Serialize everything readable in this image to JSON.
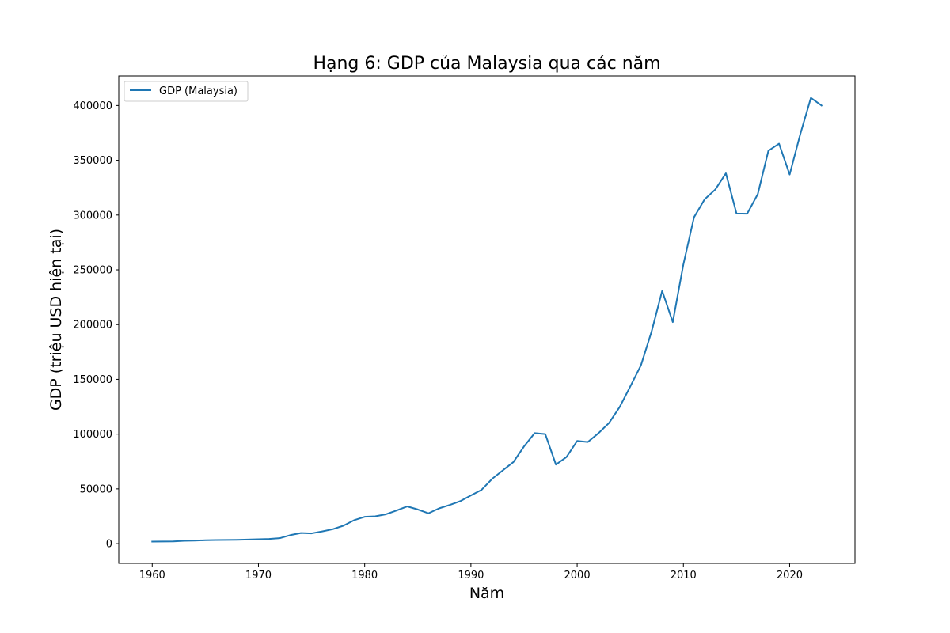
{
  "chart_data": {
    "type": "line",
    "title": "Hạng 6: GDP của Malaysia qua các năm",
    "xlabel": "Năm",
    "ylabel": "GDP (triệu USD hiện tại)",
    "xlim": [
      1956.85,
      2026.15
    ],
    "ylim": [
      -18000,
      427000
    ],
    "x_ticks": [
      1960,
      1970,
      1980,
      1990,
      2000,
      2010,
      2020
    ],
    "y_ticks": [
      0,
      50000,
      100000,
      150000,
      200000,
      250000,
      300000,
      350000,
      400000
    ],
    "legend_position": "upper left",
    "grid": false,
    "color": "#1f77b4",
    "series": [
      {
        "name": "GDP (Malaysia)",
        "x": [
          1960,
          1961,
          1962,
          1963,
          1964,
          1965,
          1966,
          1967,
          1968,
          1969,
          1970,
          1971,
          1972,
          1973,
          1974,
          1975,
          1976,
          1977,
          1978,
          1979,
          1980,
          1981,
          1982,
          1983,
          1984,
          1985,
          1986,
          1987,
          1988,
          1989,
          1990,
          1991,
          1992,
          1993,
          1994,
          1995,
          1996,
          1997,
          1998,
          1999,
          2000,
          2001,
          2002,
          2003,
          2004,
          2005,
          2006,
          2007,
          2008,
          2009,
          2010,
          2011,
          2012,
          2013,
          2014,
          2015,
          2016,
          2017,
          2018,
          2019,
          2020,
          2021,
          2022,
          2023
        ],
        "values": [
          1900,
          1950,
          2000,
          2600,
          2800,
          3100,
          3300,
          3400,
          3500,
          3800,
          4000,
          4300,
          5000,
          7800,
          9700,
          9400,
          11200,
          13200,
          16400,
          21400,
          24500,
          25000,
          26800,
          30300,
          34000,
          31200,
          27700,
          32200,
          35300,
          38800,
          44000,
          49100,
          59200,
          66900,
          74500,
          88800,
          100900,
          100000,
          72200,
          79100,
          93800,
          92800,
          100800,
          110200,
          124700,
          143500,
          162700,
          193500,
          230800,
          202300,
          255000,
          298000,
          314400,
          323300,
          338100,
          301400,
          301200,
          319100,
          358700,
          365200,
          337000,
          373800,
          407000,
          400000
        ]
      }
    ]
  }
}
